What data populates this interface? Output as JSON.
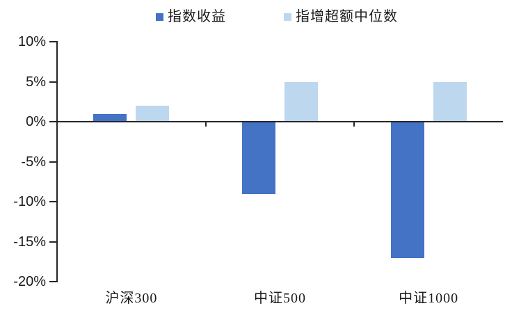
{
  "chart_data": {
    "type": "bar",
    "title": "",
    "categories": [
      "沪深300",
      "中证500",
      "中证1000"
    ],
    "series": [
      {
        "name": "指数收益",
        "color": "#4472C4",
        "values": [
          1,
          -9,
          -17
        ]
      },
      {
        "name": "指增超额中位数",
        "color": "#BDD7EE",
        "values": [
          2,
          5,
          5
        ]
      }
    ],
    "value_unit": "%",
    "ylim": [
      -20,
      10
    ],
    "ytick_interval": 5,
    "ytick_labels": [
      "10%",
      "5%",
      "0%",
      "-5%",
      "-10%",
      "-15%",
      "-20%"
    ],
    "grid": false,
    "legend_position": "top-center",
    "axis_color": "#262626",
    "background_color": "#ffffff"
  }
}
